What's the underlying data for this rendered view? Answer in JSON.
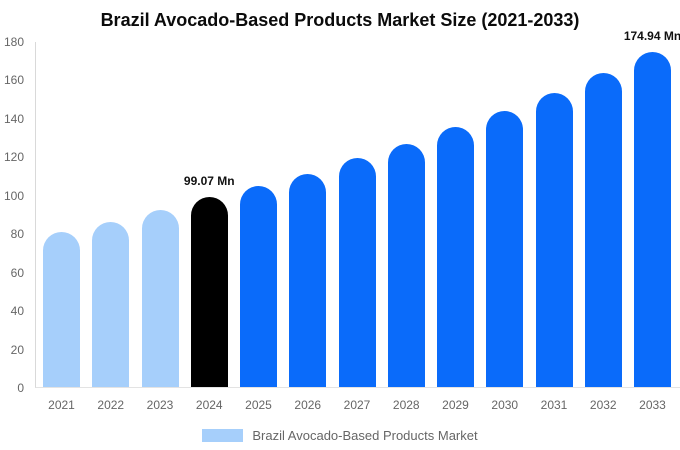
{
  "title": "Brazil Avocado-Based Products Market Size (2021-2033)",
  "chart_data": {
    "type": "bar",
    "title": "Brazil Avocado-Based Products Market Size (2021-2033)",
    "categories": [
      "2021",
      "2022",
      "2023",
      "2024",
      "2025",
      "2026",
      "2027",
      "2028",
      "2029",
      "2030",
      "2031",
      "2032",
      "2033"
    ],
    "values": [
      80.7,
      86.3,
      92.6,
      99.07,
      104.8,
      110.9,
      119.4,
      126.8,
      135.4,
      144.1,
      153.4,
      164.0,
      174.94
    ],
    "value_labels": [
      "",
      "",
      "",
      "99.07 Mn",
      "",
      "",
      "",
      "",
      "",
      "",
      "",
      "",
      "174.94 Mn"
    ],
    "bar_colors": [
      "#A6CFFB",
      "#A6CFFB",
      "#A6CFFB",
      "#000000",
      "#0A6BFA",
      "#0A6BFA",
      "#0A6BFA",
      "#0A6BFA",
      "#0A6BFA",
      "#0A6BFA",
      "#0A6BFA",
      "#0A6BFA",
      "#0A6BFA"
    ],
    "xlabel": "",
    "ylabel": "",
    "ylim": [
      0,
      180
    ],
    "yticks": [
      0,
      20,
      40,
      60,
      80,
      100,
      120,
      140,
      160,
      180
    ],
    "grid": false,
    "legend": {
      "position": "bottom",
      "label": "Brazil Avocado-Based Products Market",
      "swatch_color": "#A6CFFB"
    },
    "colors": {
      "historical_bar": "#A6CFFB",
      "highlight_bar": "#000000",
      "forecast_bar": "#0A6BFA",
      "axis_line": "#d9d9d9",
      "tick_text": "#666666",
      "title_text": "#0b0b0b",
      "annotation_text": "#111111",
      "background": "#ffffff"
    }
  }
}
